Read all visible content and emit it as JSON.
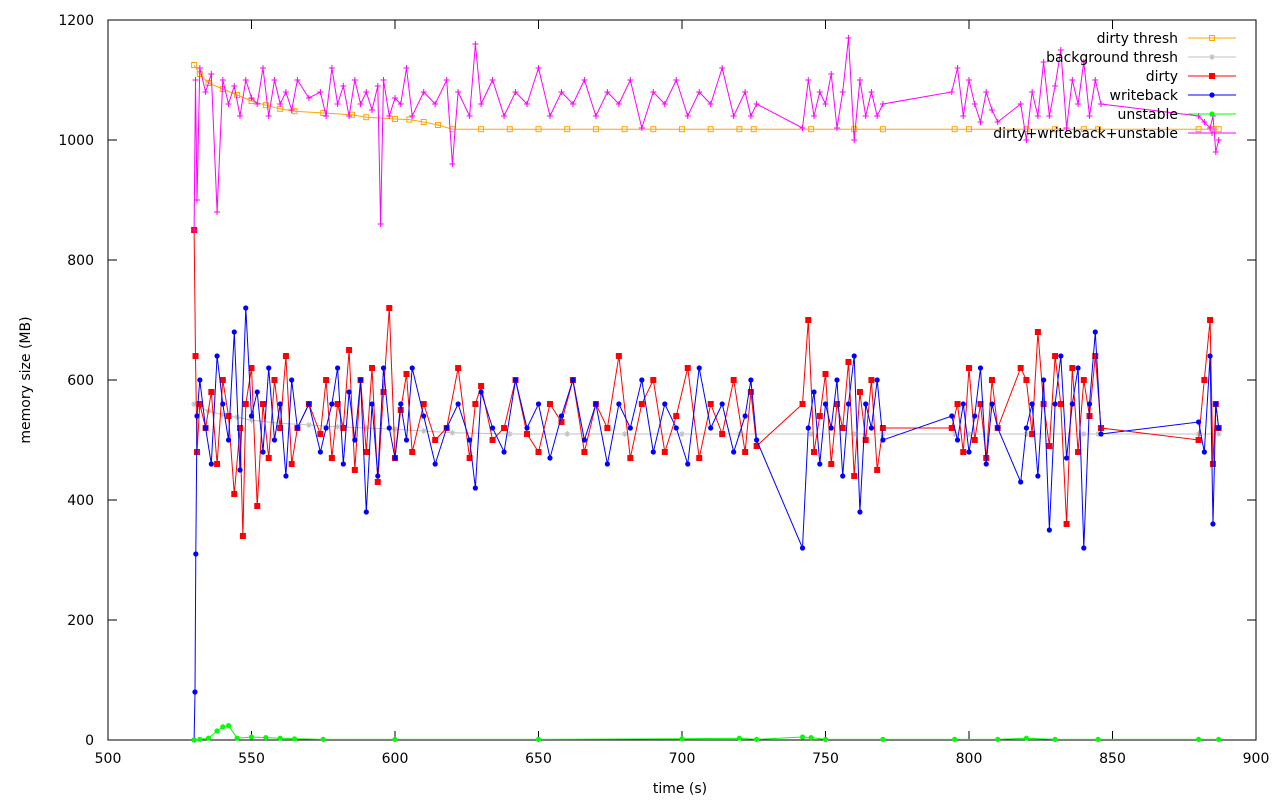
{
  "chart_data": {
    "type": "line",
    "xlabel": "time (s)",
    "ylabel": "memory size (MB)",
    "xlim": [
      500,
      900
    ],
    "ylim": [
      0,
      1200
    ],
    "x_ticks": [
      500,
      550,
      600,
      650,
      700,
      750,
      800,
      850,
      900
    ],
    "y_ticks": [
      0,
      200,
      400,
      600,
      800,
      1000,
      1200
    ],
    "grid": false,
    "legend_position": "top-right",
    "series": [
      {
        "name": "dirty thresh",
        "color": "#ffa500",
        "marker": "square",
        "x": [
          530,
          532,
          535,
          540,
          545,
          550,
          555,
          560,
          565,
          575,
          585,
          590,
          600,
          605,
          610,
          615,
          620,
          630,
          640,
          650,
          660,
          670,
          680,
          690,
          700,
          710,
          720,
          725,
          745,
          760,
          770,
          795,
          800,
          820,
          830,
          840,
          845,
          880,
          885,
          887
        ],
        "values": [
          1125,
          1110,
          1095,
          1085,
          1075,
          1065,
          1058,
          1052,
          1048,
          1045,
          1042,
          1038,
          1035,
          1034,
          1030,
          1025,
          1018,
          1018,
          1018,
          1018,
          1018,
          1018,
          1018,
          1018,
          1018,
          1018,
          1018,
          1018,
          1018,
          1018,
          1018,
          1018,
          1018,
          1018,
          1018,
          1018,
          1018,
          1018,
          1018,
          1018
        ]
      },
      {
        "name": "background thresh",
        "color": "#c0c0c0",
        "marker": "star",
        "x": [
          530,
          532,
          535,
          540,
          545,
          550,
          560,
          570,
          580,
          590,
          600,
          610,
          620,
          640,
          660,
          680,
          700,
          720,
          745,
          760,
          770,
          795,
          800,
          820,
          840,
          845,
          880,
          887
        ],
        "values": [
          560,
          555,
          548,
          542,
          538,
          533,
          528,
          525,
          522,
          520,
          518,
          515,
          512,
          510,
          510,
          510,
          510,
          510,
          510,
          510,
          510,
          510,
          510,
          510,
          510,
          510,
          510,
          510
        ]
      },
      {
        "name": "dirty",
        "color": "#ff0000",
        "marker": "filled-square",
        "x": [
          530,
          530.5,
          531,
          532,
          534,
          536,
          538,
          540,
          542,
          544,
          546,
          547,
          548,
          550,
          552,
          554,
          556,
          558,
          560,
          562,
          564,
          566,
          570,
          574,
          576,
          578,
          580,
          582,
          584,
          586,
          588,
          590,
          592,
          594,
          596,
          598,
          600,
          602,
          604,
          606,
          610,
          614,
          618,
          622,
          626,
          628,
          630,
          634,
          638,
          642,
          646,
          650,
          654,
          658,
          662,
          666,
          670,
          674,
          678,
          682,
          686,
          690,
          694,
          698,
          702,
          706,
          710,
          714,
          718,
          722,
          724,
          726,
          742,
          744,
          746,
          748,
          750,
          752,
          754,
          756,
          758,
          760,
          762,
          764,
          766,
          768,
          770,
          794,
          796,
          798,
          800,
          802,
          804,
          806,
          808,
          810,
          818,
          820,
          822,
          824,
          826,
          828,
          830,
          832,
          834,
          836,
          838,
          840,
          842,
          844,
          846,
          880,
          882,
          884,
          885,
          886,
          887
        ],
        "values": [
          850,
          640,
          480,
          560,
          520,
          580,
          460,
          600,
          540,
          410,
          520,
          340,
          560,
          620,
          390,
          560,
          470,
          600,
          520,
          640,
          460,
          520,
          560,
          510,
          600,
          470,
          560,
          520,
          650,
          450,
          600,
          480,
          620,
          430,
          580,
          720,
          470,
          550,
          610,
          480,
          560,
          500,
          520,
          620,
          470,
          560,
          590,
          500,
          520,
          600,
          510,
          480,
          560,
          530,
          600,
          480,
          560,
          520,
          640,
          470,
          560,
          600,
          480,
          540,
          620,
          470,
          560,
          510,
          600,
          480,
          580,
          490,
          560,
          700,
          480,
          540,
          610,
          460,
          560,
          520,
          630,
          440,
          580,
          500,
          600,
          450,
          520,
          520,
          560,
          480,
          620,
          500,
          560,
          470,
          600,
          520,
          620,
          600,
          510,
          680,
          560,
          490,
          640,
          560,
          360,
          620,
          480,
          600,
          540,
          640,
          520,
          500,
          600,
          700,
          460,
          560,
          520
        ]
      },
      {
        "name": "writeback",
        "color": "#0000ff",
        "marker": "filled-circle",
        "x": [
          530,
          530.3,
          530.6,
          531,
          532,
          534,
          536,
          538,
          540,
          542,
          544,
          546,
          548,
          550,
          552,
          554,
          556,
          558,
          560,
          562,
          564,
          566,
          570,
          574,
          576,
          578,
          580,
          582,
          584,
          586,
          588,
          590,
          592,
          594,
          596,
          598,
          600,
          602,
          604,
          606,
          610,
          614,
          618,
          622,
          626,
          628,
          630,
          634,
          638,
          642,
          646,
          650,
          654,
          658,
          662,
          666,
          670,
          674,
          678,
          682,
          686,
          690,
          694,
          698,
          702,
          706,
          710,
          714,
          718,
          722,
          724,
          726,
          742,
          744,
          746,
          748,
          750,
          752,
          754,
          756,
          758,
          760,
          762,
          764,
          766,
          768,
          770,
          794,
          796,
          798,
          800,
          802,
          804,
          806,
          808,
          810,
          818,
          820,
          822,
          824,
          826,
          828,
          830,
          832,
          834,
          836,
          838,
          840,
          842,
          844,
          846,
          880,
          882,
          884,
          885,
          886,
          887
        ],
        "values": [
          0,
          80,
          310,
          540,
          600,
          520,
          460,
          640,
          560,
          500,
          680,
          450,
          720,
          540,
          580,
          480,
          620,
          500,
          560,
          440,
          600,
          520,
          560,
          480,
          520,
          560,
          620,
          460,
          580,
          500,
          600,
          380,
          560,
          440,
          620,
          520,
          470,
          560,
          500,
          620,
          540,
          460,
          520,
          560,
          500,
          420,
          580,
          520,
          480,
          600,
          520,
          560,
          470,
          540,
          600,
          500,
          560,
          460,
          560,
          520,
          600,
          480,
          560,
          520,
          460,
          620,
          520,
          560,
          480,
          540,
          600,
          500,
          320,
          520,
          580,
          460,
          560,
          520,
          600,
          440,
          560,
          640,
          380,
          560,
          520,
          600,
          500,
          540,
          500,
          560,
          480,
          540,
          620,
          460,
          560,
          520,
          430,
          520,
          560,
          440,
          600,
          350,
          560,
          640,
          470,
          560,
          620,
          320,
          560,
          680,
          510,
          530,
          480,
          640,
          360,
          560,
          520
        ]
      },
      {
        "name": "unstable",
        "color": "#00ff00",
        "marker": "filled-circle",
        "x": [
          530,
          532,
          535,
          538,
          540,
          542,
          545,
          550,
          555,
          560,
          565,
          575,
          600,
          650,
          700,
          720,
          726,
          742,
          745,
          750,
          770,
          795,
          810,
          820,
          830,
          845,
          880,
          887
        ],
        "values": [
          0,
          1,
          3,
          15,
          22,
          24,
          3,
          5,
          4,
          3,
          2,
          1,
          1,
          1,
          2,
          3,
          1,
          5,
          4,
          1,
          1,
          1,
          1,
          3,
          1,
          1,
          1,
          1
        ]
      },
      {
        "name": "dirty+writeback+unstable",
        "color": "#ff00ff",
        "marker": "plus",
        "x": [
          530,
          530.5,
          531,
          532,
          534,
          536,
          538,
          540,
          542,
          544,
          546,
          548,
          550,
          552,
          554,
          556,
          558,
          560,
          562,
          564,
          566,
          570,
          574,
          576,
          578,
          580,
          582,
          584,
          586,
          588,
          590,
          592,
          594,
          595,
          596,
          598,
          600,
          602,
          604,
          606,
          610,
          614,
          618,
          620,
          622,
          626,
          628,
          630,
          634,
          638,
          642,
          646,
          650,
          654,
          658,
          662,
          666,
          670,
          674,
          678,
          682,
          686,
          690,
          694,
          698,
          702,
          706,
          710,
          714,
          718,
          722,
          724,
          726,
          742,
          744,
          746,
          748,
          750,
          752,
          754,
          756,
          758,
          760,
          762,
          764,
          766,
          768,
          770,
          794,
          796,
          798,
          800,
          802,
          804,
          806,
          808,
          810,
          818,
          820,
          822,
          824,
          826,
          828,
          830,
          832,
          834,
          836,
          838,
          840,
          842,
          844,
          846,
          880,
          882,
          884,
          885,
          886,
          887
        ],
        "values": [
          850,
          1100,
          900,
          1120,
          1080,
          1110,
          880,
          1100,
          1060,
          1090,
          1040,
          1100,
          1070,
          1060,
          1120,
          1040,
          1100,
          1060,
          1080,
          1050,
          1100,
          1070,
          1080,
          1040,
          1120,
          1060,
          1090,
          1040,
          1100,
          1060,
          1080,
          1050,
          1090,
          860,
          1100,
          1040,
          1070,
          1060,
          1120,
          1040,
          1080,
          1060,
          1100,
          960,
          1080,
          1040,
          1160,
          1060,
          1100,
          1040,
          1080,
          1060,
          1120,
          1040,
          1080,
          1060,
          1100,
          1040,
          1080,
          1060,
          1100,
          1020,
          1080,
          1060,
          1100,
          1040,
          1080,
          1060,
          1120,
          1040,
          1080,
          1040,
          1060,
          1020,
          1100,
          1040,
          1080,
          1060,
          1110,
          1020,
          1080,
          1170,
          1000,
          1100,
          1040,
          1080,
          1040,
          1060,
          1080,
          1120,
          1040,
          1100,
          1060,
          1030,
          1080,
          1050,
          1030,
          1060,
          1000,
          1080,
          1040,
          1130,
          1040,
          1090,
          1150,
          1020,
          1100,
          1060,
          1130,
          1040,
          1100,
          1060,
          1040,
          1030,
          1020,
          1040,
          980,
          1000
        ]
      }
    ]
  }
}
